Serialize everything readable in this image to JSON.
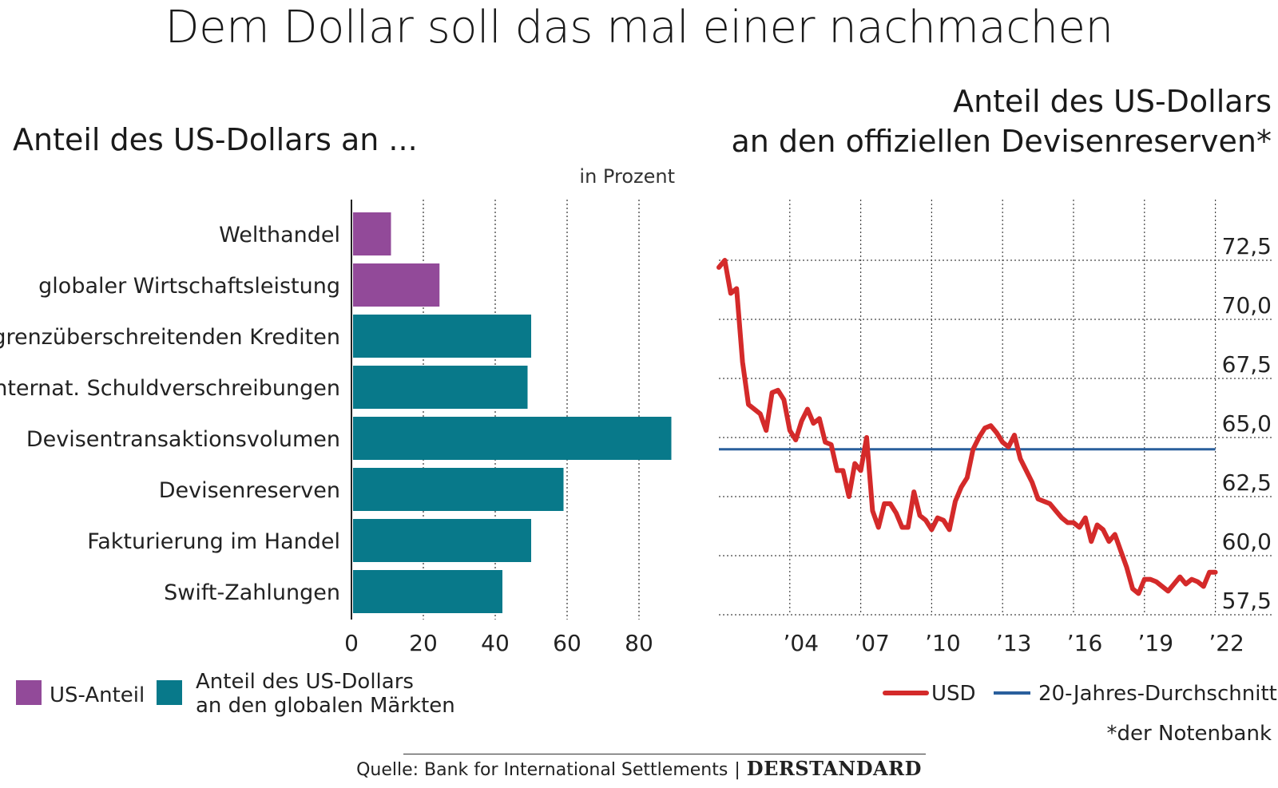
{
  "title": "Dem Dollar soll das mal einer nachmachen",
  "left_chart_title": "Anteil des US-Dollars an ...",
  "unit_label": "in Prozent",
  "right_chart_title_line1": "Anteil des US-Dollars",
  "right_chart_title_line2": "an den offiziellen Devisenreserven*",
  "footnote": "*der Notenbank",
  "source": "Quelle: Bank for International Settlements",
  "publisher_logo": "DERSTANDARD",
  "colors": {
    "us_share": "#924a99",
    "dollar_share": "#08798a",
    "usd_line": "#d42a2a",
    "avg_line": "#2a5f9c"
  },
  "legend_left": [
    {
      "label": "US-Anteil",
      "color": "#924a99"
    },
    {
      "label_line1": "Anteil des US-Dollars",
      "label_line2": "an den globalen Märkten",
      "color": "#08798a"
    }
  ],
  "legend_right": [
    {
      "label": "USD",
      "color": "#d42a2a"
    },
    {
      "label": "20-Jahres-Durchschnitt",
      "color": "#2a5f9c"
    }
  ],
  "chart_data": [
    {
      "type": "bar",
      "orientation": "horizontal",
      "categories": [
        "Welthandel",
        "globaler Wirtschaftsleistung",
        "grenzüberschreitenden Krediten",
        "internat. Schuldverschreibungen",
        "Devisentransaktionsvolumen",
        "Devisenreserven",
        "Fakturierung im Handel",
        "Swift-Zahlungen"
      ],
      "series": [
        {
          "name": "US-Anteil",
          "values": [
            11,
            24.5,
            null,
            null,
            null,
            null,
            null,
            null
          ]
        },
        {
          "name": "Anteil des US-Dollars an den globalen Märkten",
          "values": [
            null,
            null,
            50,
            49,
            89,
            59,
            50,
            42
          ]
        }
      ],
      "xticks": [
        0,
        20,
        40,
        60,
        80
      ],
      "xlim": [
        0,
        90
      ],
      "grid": "vertical dotted"
    },
    {
      "type": "line",
      "yticks": [
        "72,5",
        "70,0",
        "67,5",
        "65,0",
        "62,5",
        "60,0",
        "57,5"
      ],
      "ytick_values": [
        72.5,
        70,
        67.5,
        65,
        62.5,
        60,
        57.5
      ],
      "xticks": [
        "’04",
        "’07",
        "’10",
        "’13",
        "’16",
        "’19",
        "’22"
      ],
      "xtick_values": [
        2004,
        2007,
        2010,
        2013,
        2016,
        2019,
        2022
      ],
      "xlim": [
        2001.0,
        2022.0
      ],
      "ylim": [
        57.5,
        73.5
      ],
      "grid": "dotted",
      "series": [
        {
          "name": "USD",
          "x": [
            2001.0,
            2001.25,
            2001.5,
            2001.75,
            2002.0,
            2002.25,
            2002.5,
            2002.75,
            2003.0,
            2003.25,
            2003.5,
            2003.75,
            2004.0,
            2004.25,
            2004.5,
            2004.75,
            2005.0,
            2005.25,
            2005.5,
            2005.75,
            2006.0,
            2006.25,
            2006.5,
            2006.75,
            2007.0,
            2007.25,
            2007.5,
            2007.75,
            2008.0,
            2008.25,
            2008.5,
            2008.75,
            2009.0,
            2009.25,
            2009.5,
            2009.75,
            2010.0,
            2010.25,
            2010.5,
            2010.75,
            2011.0,
            2011.25,
            2011.5,
            2011.75,
            2012.0,
            2012.25,
            2012.5,
            2012.75,
            2013.0,
            2013.25,
            2013.5,
            2013.75,
            2014.0,
            2014.25,
            2014.5,
            2014.75,
            2015.0,
            2015.25,
            2015.5,
            2015.75,
            2016.0,
            2016.25,
            2016.5,
            2016.75,
            2017.0,
            2017.25,
            2017.5,
            2017.75,
            2018.0,
            2018.25,
            2018.5,
            2018.75,
            2019.0,
            2019.25,
            2019.5,
            2019.75,
            2020.0,
            2020.25,
            2020.5,
            2020.75,
            2021.0,
            2021.25,
            2021.5,
            2021.75,
            2022.0
          ],
          "y": [
            72.2,
            72.5,
            71.1,
            71.3,
            68.2,
            66.4,
            66.2,
            66.0,
            65.3,
            66.9,
            67.0,
            66.6,
            65.3,
            64.9,
            65.7,
            66.2,
            65.6,
            65.8,
            64.8,
            64.7,
            63.6,
            63.6,
            62.5,
            63.9,
            63.6,
            65.0,
            61.9,
            61.2,
            62.2,
            62.2,
            61.8,
            61.2,
            61.2,
            62.7,
            61.7,
            61.5,
            61.1,
            61.6,
            61.5,
            61.1,
            62.3,
            62.9,
            63.3,
            64.5,
            65.0,
            65.4,
            65.5,
            65.2,
            64.8,
            64.6,
            65.1,
            64.1,
            63.6,
            63.1,
            62.4,
            62.3,
            62.2,
            61.9,
            61.6,
            61.4,
            61.4,
            61.2,
            61.6,
            60.6,
            61.3,
            61.1,
            60.6,
            60.9,
            60.2,
            59.5,
            58.6,
            58.4,
            59.0,
            59.0,
            58.9,
            58.7,
            58.5,
            58.8,
            59.1,
            58.8,
            59.0,
            58.9,
            58.7,
            59.3,
            59.3
          ],
          "color": "#d42a2a"
        },
        {
          "name": "20-Jahres-Durchschnitt",
          "x": [
            2001.0,
            2022.0
          ],
          "y": [
            64.5,
            64.5
          ],
          "color": "#2a5f9c"
        }
      ]
    }
  ]
}
